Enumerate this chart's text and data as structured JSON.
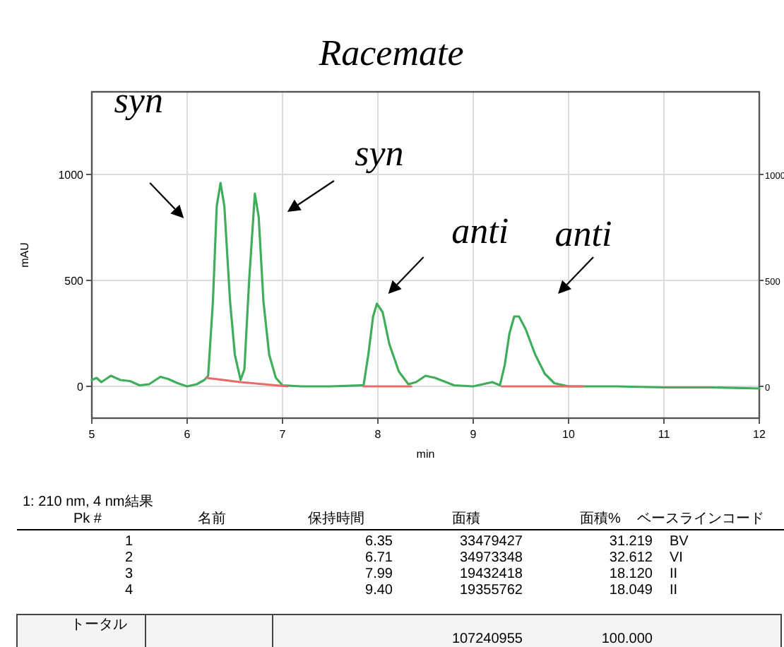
{
  "chart_data": {
    "type": "line",
    "title": "Racemate",
    "xlabel": "min",
    "ylabel": "mAU",
    "xlim": [
      5,
      12
    ],
    "xticks": [
      5,
      6,
      7,
      8,
      9,
      10,
      11,
      12
    ],
    "ylim": [
      -150,
      1390
    ],
    "yticks": [
      0,
      500,
      1000
    ],
    "y2lim": [
      -150,
      1390
    ],
    "y2ticks": [
      0,
      500,
      1000
    ],
    "grid": true,
    "marker": "none",
    "line_style": "solid",
    "series": [
      {
        "color": "#3fae5a",
        "x": [
          5.0,
          5.05,
          5.1,
          5.2,
          5.3,
          5.4,
          5.5,
          5.6,
          5.72,
          5.8,
          5.9,
          6.0,
          6.1,
          6.18,
          6.22,
          6.27,
          6.31,
          6.35,
          6.39,
          6.45,
          6.5,
          6.56,
          6.6,
          6.65,
          6.71,
          6.75,
          6.8,
          6.86,
          6.93,
          7.0,
          7.2,
          7.5,
          7.85,
          7.9,
          7.95,
          7.99,
          8.05,
          8.12,
          8.22,
          8.32,
          8.4,
          8.5,
          8.6,
          8.8,
          9.0,
          9.2,
          9.28,
          9.33,
          9.38,
          9.43,
          9.48,
          9.55,
          9.65,
          9.75,
          9.85,
          10.0,
          10.5,
          11.0,
          11.5,
          12.0
        ],
        "values": [
          30,
          40,
          20,
          50,
          30,
          25,
          5,
          10,
          45,
          35,
          15,
          0,
          10,
          30,
          50,
          400,
          850,
          960,
          850,
          400,
          150,
          30,
          80,
          500,
          910,
          800,
          400,
          150,
          40,
          5,
          0,
          0,
          5,
          150,
          330,
          390,
          350,
          200,
          70,
          10,
          20,
          50,
          40,
          5,
          0,
          20,
          5,
          100,
          250,
          330,
          330,
          270,
          150,
          60,
          15,
          0,
          0,
          -5,
          -5,
          -10
        ]
      },
      {
        "color": "#e86a6a",
        "x": [
          6.2,
          6.56,
          7.05
        ],
        "values": [
          40,
          20,
          0
        ]
      },
      {
        "color": "#e86a6a",
        "x": [
          7.85,
          8.35
        ],
        "values": [
          0,
          0
        ]
      },
      {
        "color": "#e86a6a",
        "x": [
          9.3,
          10.15
        ],
        "values": [
          0,
          0
        ]
      }
    ],
    "annotations": [
      {
        "text": "syn",
        "x": 6.35,
        "y": 960
      },
      {
        "text": "syn",
        "x": 6.71,
        "y": 910
      },
      {
        "text": "anti",
        "x": 7.99,
        "y": 390
      },
      {
        "text": "anti",
        "x": 9.43,
        "y": 330
      },
      "1: 210 nm, 4 nm結果",
      "Pk #",
      "名前",
      "保持時間",
      "面積",
      "面積%",
      "ベースラインコード",
      "1",
      "6.35",
      "33479427",
      "31.219",
      "BV",
      "2",
      "6.71",
      "34973348",
      "32.612",
      "VI",
      "3",
      "7.99",
      "19432418",
      "18.120",
      "II",
      "4",
      "9.40",
      "19355762",
      "18.049",
      "II",
      "トータル",
      "107240955",
      "100.000"
    ]
  }
}
